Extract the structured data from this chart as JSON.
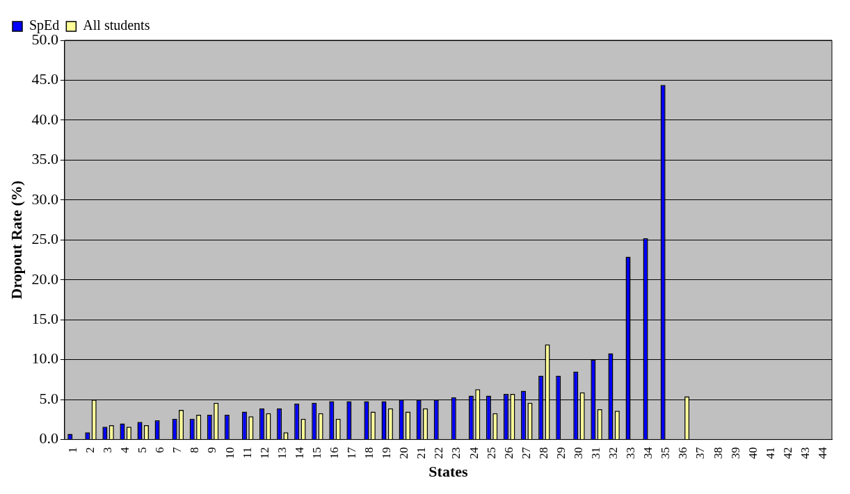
{
  "chart_data": {
    "type": "bar",
    "xlabel": "States",
    "ylabel": "Dropout Rate (%)",
    "categories": [
      "1",
      "2",
      "3",
      "4",
      "5",
      "6",
      "7",
      "8",
      "9",
      "10",
      "11",
      "12",
      "13",
      "14",
      "15",
      "16",
      "17",
      "18",
      "19",
      "20",
      "21",
      "22",
      "23",
      "24",
      "25",
      "26",
      "27",
      "28",
      "29",
      "30",
      "31",
      "32",
      "33",
      "34",
      "35",
      "36",
      "37",
      "38",
      "39",
      "40",
      "41",
      "42",
      "43",
      "44"
    ],
    "series": [
      {
        "name": "SpEd",
        "color": "#0000ff",
        "values": [
          0.7,
          0.9,
          1.6,
          2.0,
          2.2,
          2.4,
          2.6,
          2.6,
          3.1,
          3.1,
          3.5,
          3.9,
          3.9,
          4.5,
          4.6,
          4.8,
          4.8,
          4.8,
          4.8,
          5.0,
          5.0,
          5.0,
          5.3,
          5.5,
          5.5,
          5.7,
          6.1,
          8.0,
          8.0,
          8.5,
          10.0,
          10.8,
          22.9,
          25.2,
          44.4,
          null,
          null,
          null,
          null,
          null,
          null,
          null,
          null,
          null
        ]
      },
      {
        "name": "All students",
        "color": "#ffff99",
        "values": [
          null,
          5.0,
          1.8,
          1.6,
          1.8,
          null,
          3.7,
          3.1,
          4.6,
          null,
          2.9,
          3.3,
          0.9,
          2.6,
          3.3,
          2.6,
          null,
          3.5,
          3.9,
          3.5,
          3.9,
          null,
          null,
          6.3,
          3.3,
          5.7,
          4.6,
          11.9,
          null,
          5.9,
          3.8,
          3.6,
          null,
          null,
          null,
          5.4,
          null,
          null,
          null,
          null,
          null,
          null,
          null,
          null
        ]
      }
    ],
    "ylim": [
      0,
      50
    ],
    "yticks": [
      {
        "value": 0,
        "label": "0.0"
      },
      {
        "value": 5,
        "label": "5.0"
      },
      {
        "value": 10,
        "label": "10.0"
      },
      {
        "value": 15,
        "label": "15.0"
      },
      {
        "value": 20,
        "label": "20.0"
      },
      {
        "value": 25,
        "label": "25.0"
      },
      {
        "value": 30,
        "label": "30.0"
      },
      {
        "value": 35,
        "label": "35.0"
      },
      {
        "value": 40,
        "label": "40.0"
      },
      {
        "value": 45,
        "label": "45.0"
      },
      {
        "value": 50,
        "label": "50.0"
      }
    ],
    "grid": "y",
    "legend": "top left"
  }
}
